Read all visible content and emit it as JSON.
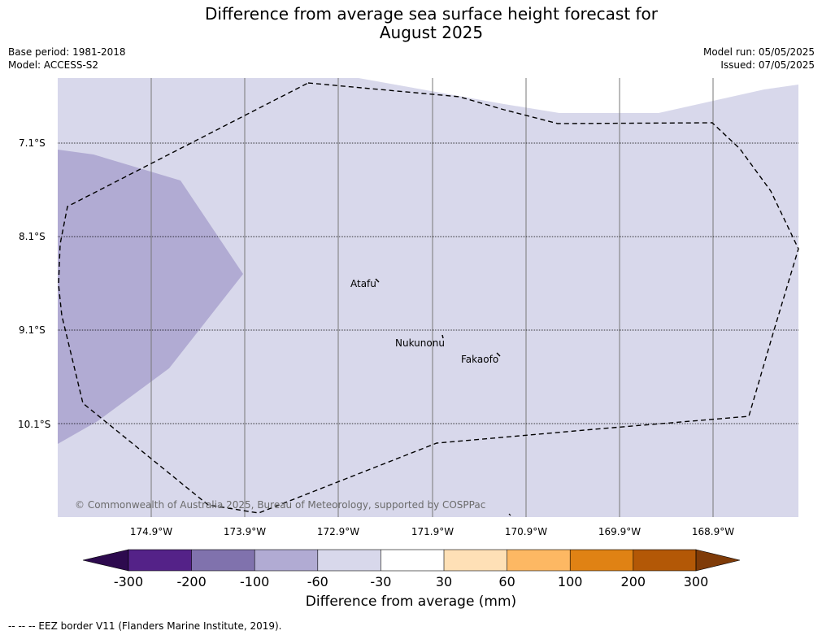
{
  "title": {
    "line1": "Difference from average sea surface height forecast for",
    "line2": "August 2025"
  },
  "meta": {
    "base_period": "Base period: 1981-2018",
    "model": "Model: ACCESS-S2",
    "model_run": "Model run: 05/05/2025",
    "issued": "Issued: 07/05/2025"
  },
  "axes": {
    "lat_labels": [
      "7.1°S",
      "8.1°S",
      "9.1°S",
      "10.1°S"
    ],
    "lon_labels": [
      "174.9°W",
      "173.9°W",
      "172.9°W",
      "171.9°W",
      "170.9°W",
      "169.9°W",
      "168.9°W"
    ]
  },
  "islands": {
    "atafu": "Atafu",
    "nukunonu": "Nukunonu",
    "fakaofo": "Fakaofo"
  },
  "copyright": "© Commonwealth of Australia 2025, Bureau of Meteorology, supported by COSPPac",
  "colorbar": {
    "ticks": [
      "-300",
      "-200",
      "-100",
      "-60",
      "-30",
      "30",
      "60",
      "100",
      "200",
      "300"
    ],
    "label": "Difference from average (mm)",
    "colors": [
      "#2d0a4e",
      "#542288",
      "#8072ad",
      "#b1abd3",
      "#d8d8eb",
      "#ffffff",
      "#fee0b6",
      "#fdb863",
      "#e08214",
      "#b35806",
      "#7f3b08"
    ]
  },
  "map_fill": {
    "band_-60_-30": "#d8d8eb",
    "band_-100_-60": "#b1abd3"
  },
  "legend_note": "--  --  -- EEZ border V11 (Flanders Marine Institute, 2019)."
}
